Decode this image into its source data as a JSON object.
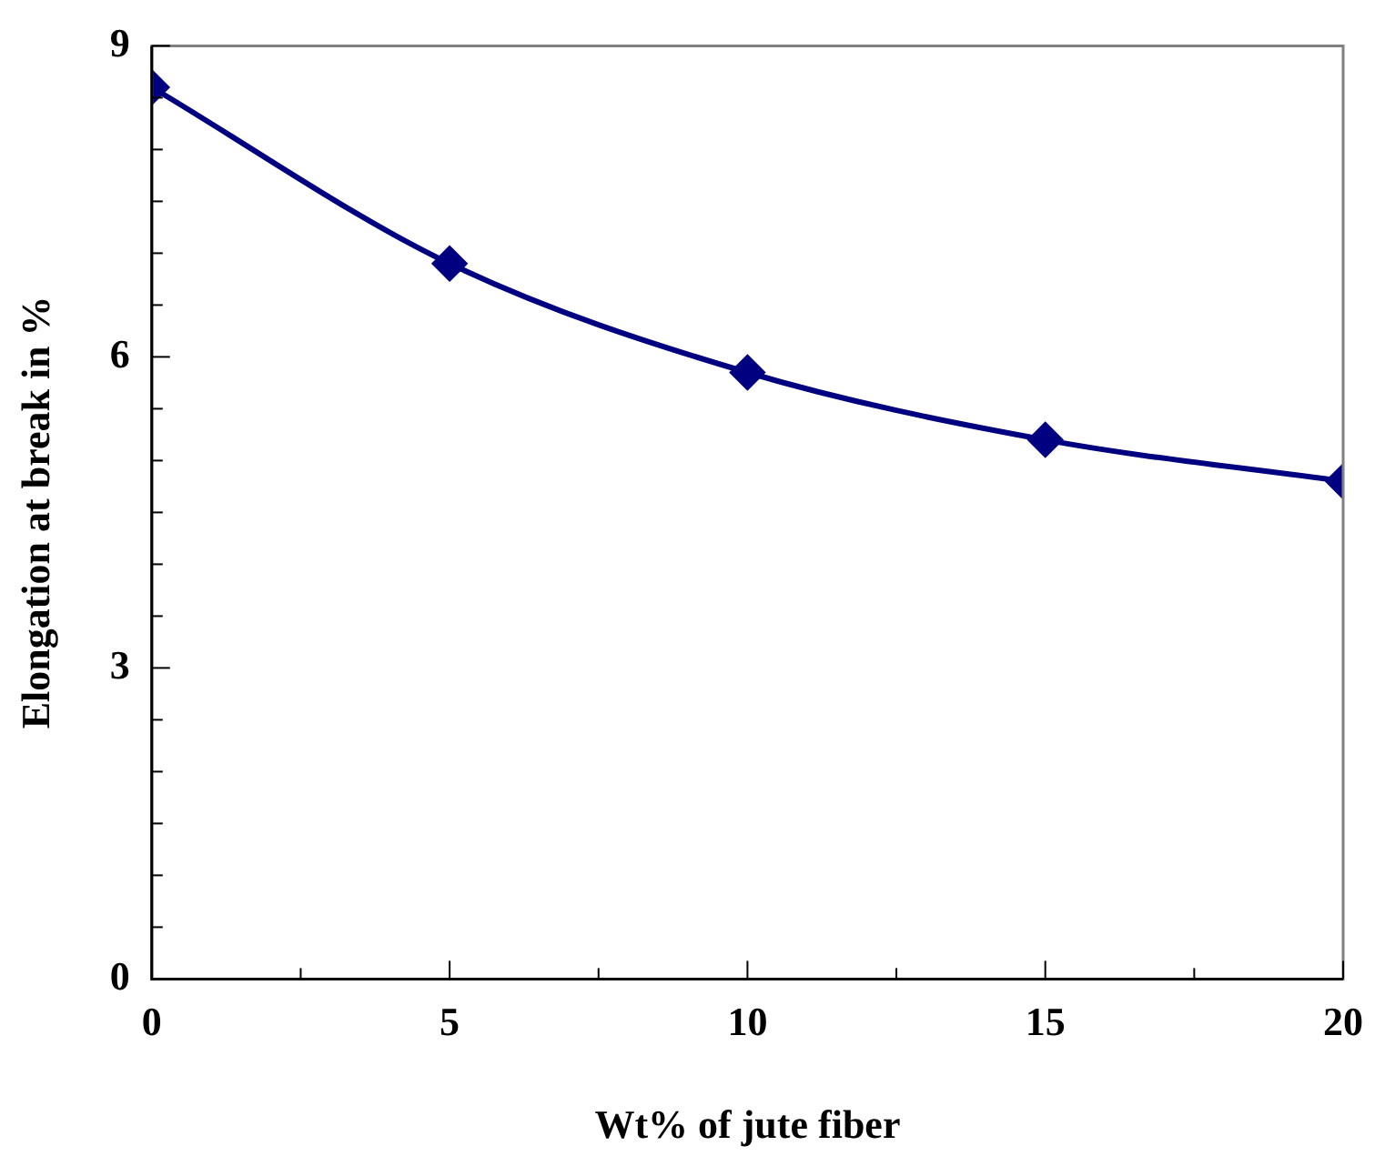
{
  "chart_data": {
    "type": "line",
    "xlabel": "Wt% of jute fiber",
    "ylabel": "Elongation at break in %",
    "x": [
      0,
      5,
      10,
      15,
      20
    ],
    "series": [
      {
        "color": "#000080",
        "values": [
          8.6,
          6.9,
          5.85,
          5.2,
          4.8
        ]
      }
    ],
    "xlim": [
      0,
      20
    ],
    "ylim": [
      0,
      9
    ],
    "xticks": [
      0,
      {
        "value": 2.5,
        "label": null
      },
      5,
      {
        "value": 7.5,
        "label": null
      },
      10,
      {
        "value": 12.5,
        "label": null
      },
      15,
      {
        "value": 17.5,
        "label": null
      },
      20
    ],
    "yticks": [
      0,
      {
        "value": 0.5,
        "label": null
      },
      {
        "value": 1,
        "label": null
      },
      {
        "value": 1.5,
        "label": null
      },
      {
        "value": 2,
        "label": null
      },
      {
        "value": 2.5,
        "label": null
      },
      3,
      {
        "value": 3.5,
        "label": null
      },
      {
        "value": 4,
        "label": null
      },
      {
        "value": 4.5,
        "label": null
      },
      {
        "value": 5,
        "label": null
      },
      {
        "value": 5.5,
        "label": null
      },
      6,
      {
        "value": 6.5,
        "label": null
      },
      {
        "value": 7,
        "label": null
      },
      {
        "value": 7.5,
        "label": null
      },
      {
        "value": 8,
        "label": null
      },
      {
        "value": 8.5,
        "label": null
      },
      9
    ],
    "marker": "diamond",
    "line_style": "solid"
  }
}
